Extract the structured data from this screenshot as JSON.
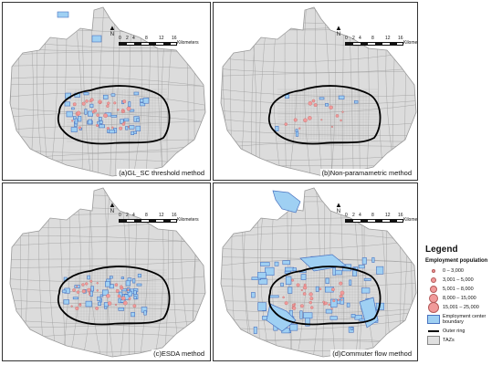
{
  "panels": [
    {
      "label": "(a)GL_SC threshold method"
    },
    {
      "label": "(b)Non-paramametric method"
    },
    {
      "label": "(c)ESDA method"
    },
    {
      "label": "(d)Commuter flow method"
    }
  ],
  "scale": {
    "ticks": [
      "0",
      "2",
      "4",
      "8",
      "12",
      "16"
    ],
    "unit": "Kilometers"
  },
  "north_label": "N",
  "legend": {
    "title": "Legend",
    "subtitle": "Employment  population",
    "classes": [
      "0  – 3,000",
      "3,001 – 5,000",
      "5,001 – 8,000",
      "8,000 – 15,000",
      "15,001 – 25,000"
    ],
    "center_boundary": "Employment center boundary",
    "outer_ring": "Outer ring",
    "taz": "TAZs"
  },
  "colors": {
    "taz_fill": "#dcdcdc",
    "taz_edge": "#9a9a9a",
    "center_fill": "#9fd0f3",
    "center_edge": "#4a73c0",
    "ring": "#000000",
    "dots": "#f19a9a"
  }
}
